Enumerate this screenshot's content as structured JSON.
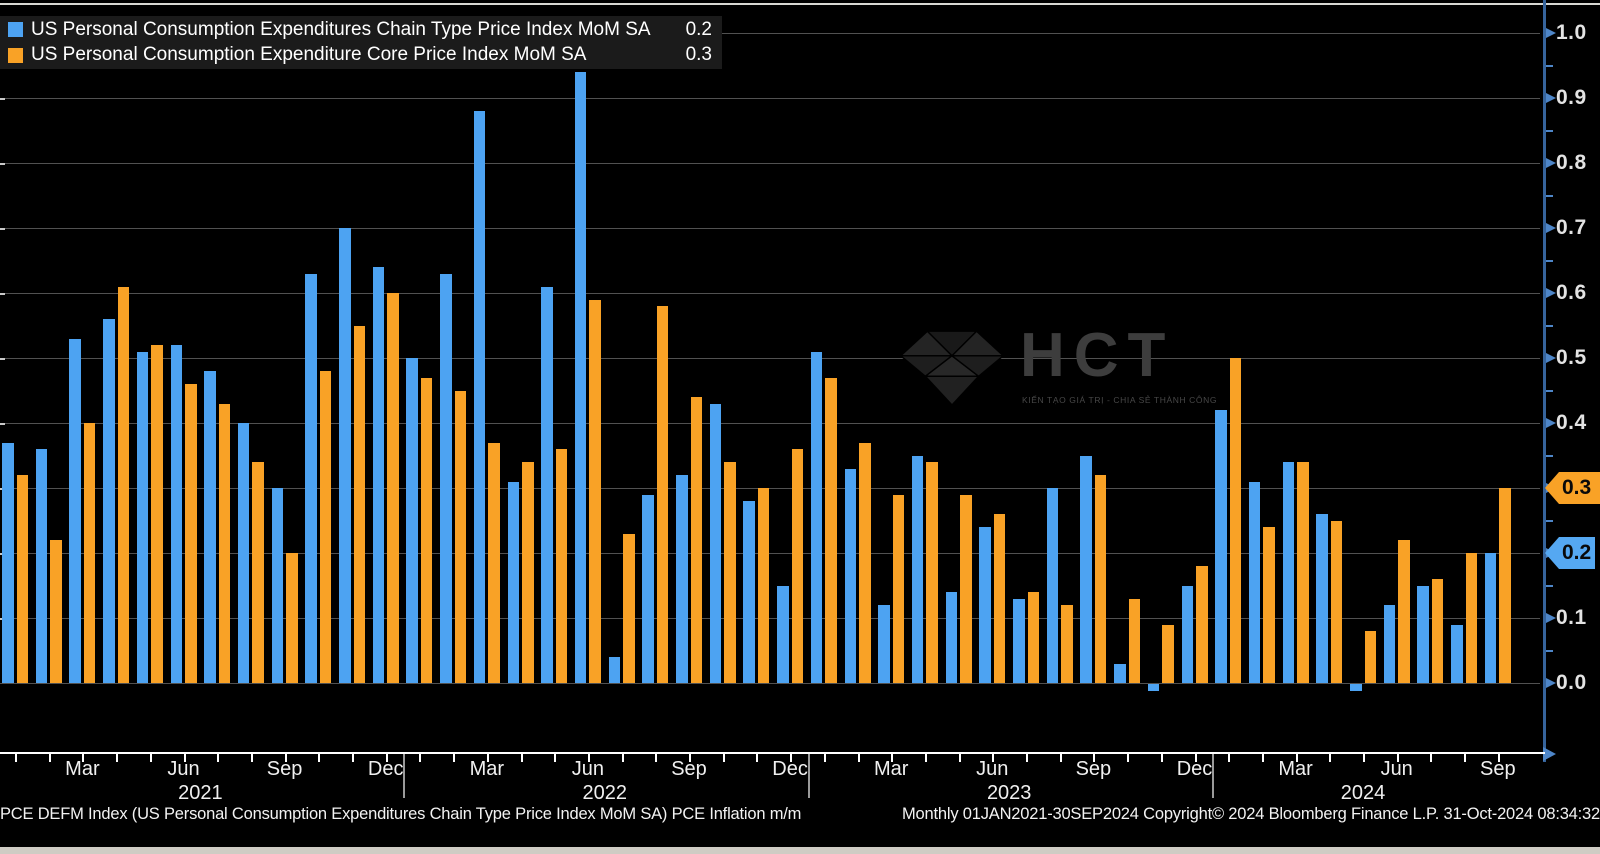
{
  "legend": {
    "items": [
      {
        "label": "US Personal Consumption Expenditures Chain Type Price Index MoM SA",
        "value": "0.2",
        "color": "#4da3f2"
      },
      {
        "label": "US Personal Consumption Expenditure Core Price Index MoM SA",
        "value": "0.3",
        "color": "#f9a226"
      }
    ]
  },
  "y_axis": {
    "tick_labels": [
      "1.0",
      "0.9",
      "0.8",
      "0.7",
      "0.6",
      "0.5",
      "0.4",
      "0.3",
      "0.2",
      "0.1",
      "0.0"
    ],
    "badges": [
      {
        "value": "0.3",
        "color": "#f9a226",
        "level": 0.3
      },
      {
        "value": "0.2",
        "color": "#55a8f2",
        "level": 0.2
      }
    ]
  },
  "x_axis": {
    "month_labels": [
      {
        "label": "Mar",
        "m": 2
      },
      {
        "label": "Jun",
        "m": 5
      },
      {
        "label": "Sep",
        "m": 8
      },
      {
        "label": "Dec",
        "m": 11
      },
      {
        "label": "Mar",
        "m": 14
      },
      {
        "label": "Jun",
        "m": 17
      },
      {
        "label": "Sep",
        "m": 20
      },
      {
        "label": "Dec",
        "m": 23
      },
      {
        "label": "Mar",
        "m": 26
      },
      {
        "label": "Jun",
        "m": 29
      },
      {
        "label": "Sep",
        "m": 32
      },
      {
        "label": "Dec",
        "m": 35
      },
      {
        "label": "Mar",
        "m": 38
      },
      {
        "label": "Jun",
        "m": 41
      },
      {
        "label": "Sep",
        "m": 44
      }
    ],
    "year_labels": [
      {
        "label": "2021",
        "m": 5.5
      },
      {
        "label": "2022",
        "m": 17.5
      },
      {
        "label": "2023",
        "m": 29.5
      },
      {
        "label": "2024",
        "m": 40
      }
    ],
    "year_separators_at_month": [
      12,
      24,
      36
    ]
  },
  "watermark": {
    "logo": "diamond-logo",
    "title": "HCT",
    "tagline": "KIẾN TẠO GIÁ TRỊ - CHIA SẺ THÀNH CÔNG"
  },
  "footer": {
    "left": "PCE DEFM Index (US Personal Consumption Expenditures Chain Type Price Index MoM SA) PCE Inflation m/m",
    "right": "Monthly 01JAN2021-30SEP2024 Copyright© 2024 Bloomberg Finance L.P. 31-Oct-2024 08:34:32"
  },
  "chart_data": {
    "type": "bar",
    "title": "",
    "xlabel": "",
    "ylabel": "",
    "ylim": [
      0.0,
      1.0
    ],
    "grid": true,
    "legend_position": "top-left",
    "categories": [
      "Jan 2021",
      "Feb 2021",
      "Mar 2021",
      "Apr 2021",
      "May 2021",
      "Jun 2021",
      "Jul 2021",
      "Aug 2021",
      "Sep 2021",
      "Oct 2021",
      "Nov 2021",
      "Dec 2021",
      "Jan 2022",
      "Feb 2022",
      "Mar 2022",
      "Apr 2022",
      "May 2022",
      "Jun 2022",
      "Jul 2022",
      "Aug 2022",
      "Sep 2022",
      "Oct 2022",
      "Nov 2022",
      "Dec 2022",
      "Jan 2023",
      "Feb 2023",
      "Mar 2023",
      "Apr 2023",
      "May 2023",
      "Jun 2023",
      "Jul 2023",
      "Aug 2023",
      "Sep 2023",
      "Oct 2023",
      "Nov 2023",
      "Dec 2023",
      "Jan 2024",
      "Feb 2024",
      "Mar 2024",
      "Apr 2024",
      "May 2024",
      "Jun 2024",
      "Jul 2024",
      "Aug 2024",
      "Sep 2024"
    ],
    "series": [
      {
        "name": "US Personal Consumption Expenditures Chain Type Price Index MoM SA",
        "color": "#4da3f2",
        "last_value": 0.2,
        "values": [
          0.37,
          0.36,
          0.53,
          0.56,
          0.51,
          0.52,
          0.48,
          0.4,
          0.3,
          0.63,
          0.7,
          0.64,
          0.5,
          0.63,
          0.88,
          0.31,
          0.61,
          0.94,
          0.04,
          0.29,
          0.32,
          0.43,
          0.28,
          0.15,
          0.51,
          0.33,
          0.12,
          0.35,
          0.14,
          0.24,
          0.13,
          0.3,
          0.35,
          0.03,
          -0.01,
          0.15,
          0.42,
          0.31,
          0.34,
          0.26,
          -0.01,
          0.12,
          0.15,
          0.09,
          0.2
        ]
      },
      {
        "name": "US Personal Consumption Expenditure Core Price Index MoM SA",
        "color": "#f9a226",
        "last_value": 0.3,
        "values": [
          0.32,
          0.22,
          0.4,
          0.61,
          0.52,
          0.46,
          0.43,
          0.34,
          0.2,
          0.48,
          0.55,
          0.6,
          0.47,
          0.45,
          0.37,
          0.34,
          0.36,
          0.59,
          0.23,
          0.58,
          0.44,
          0.34,
          0.3,
          0.36,
          0.47,
          0.37,
          0.29,
          0.34,
          0.29,
          0.26,
          0.14,
          0.12,
          0.32,
          0.13,
          0.09,
          0.18,
          0.5,
          0.24,
          0.34,
          0.25,
          0.08,
          0.22,
          0.16,
          0.2,
          0.3
        ]
      }
    ]
  }
}
